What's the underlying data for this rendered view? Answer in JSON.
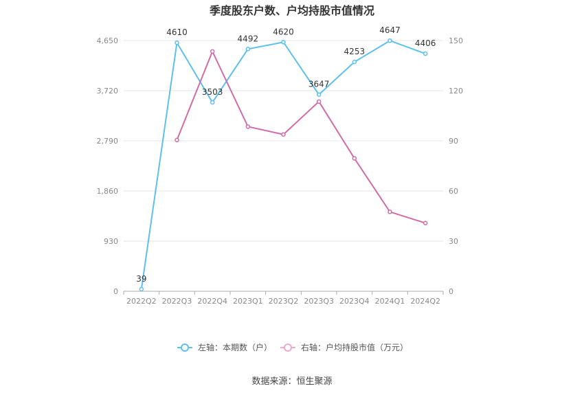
{
  "chart_data": {
    "type": "line",
    "title": "季度股东户数、户均持股市值情况",
    "categories": [
      "2022Q2",
      "2022Q3",
      "2022Q4",
      "2023Q1",
      "2023Q2",
      "2023Q3",
      "2023Q4",
      "2024Q1",
      "2024Q2"
    ],
    "y_left": {
      "ticks": [
        "0",
        "930",
        "1,860",
        "2,790",
        "3,720",
        "4,650"
      ],
      "range": [
        0,
        4650
      ]
    },
    "y_right": {
      "ticks": [
        "0",
        "30",
        "60",
        "90",
        "120",
        "150"
      ],
      "range": [
        0,
        150
      ]
    },
    "grid": true,
    "legend_position": "bottom",
    "series": [
      {
        "name": "左轴：本期数（户）",
        "axis": "left",
        "color": "#5bc0eb",
        "values": [
          39,
          4610,
          3503,
          4492,
          4620,
          3647,
          4253,
          4647,
          4406
        ],
        "labels": [
          "39",
          "4610",
          "3503",
          "4492",
          "4620",
          "3647",
          "4253",
          "4647",
          "4406"
        ]
      },
      {
        "name": "右轴：户均持股市值（万元）",
        "axis": "right",
        "color": "#d16ba5",
        "values": [
          null,
          90.5,
          143.5,
          98.5,
          93.8,
          113.5,
          79.5,
          47.5,
          40.8
        ]
      }
    ],
    "source": "数据来源：恒生聚源"
  }
}
